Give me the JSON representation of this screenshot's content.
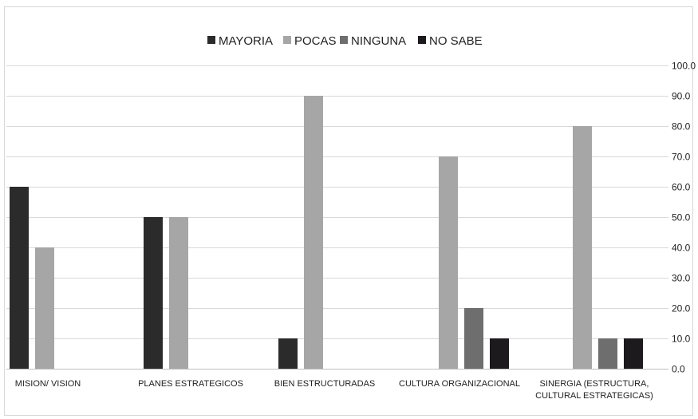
{
  "chart_data": {
    "type": "bar",
    "categories": [
      [
        "MISION/ VISION"
      ],
      [
        "PLANES ESTRATEGICOS"
      ],
      [
        "BIEN ESTRUCTURADAS"
      ],
      [
        "CULTURA ORGANIZACIONAL"
      ],
      [
        "SINERGIA (ESTRUCTURA,",
        "CULTURAL ESTRATEGICAS)"
      ]
    ],
    "series": [
      {
        "name": "MAYORIA",
        "color": "#2b2b2b",
        "values": [
          60,
          50,
          10,
          0,
          0
        ]
      },
      {
        "name": "POCAS",
        "color": "#a6a6a6",
        "values": [
          40,
          50,
          90,
          70,
          80
        ]
      },
      {
        "name": "NINGUNA",
        "color": "#6e6e6e",
        "values": [
          0,
          0,
          0,
          20,
          10
        ]
      },
      {
        "name": "NO SABE",
        "color": "#1c1a1d",
        "values": [
          0,
          0,
          0,
          10,
          10
        ]
      }
    ],
    "y_ticks": [
      "0.0",
      "10.0",
      "20.0",
      "30.0",
      "40.0",
      "50.0",
      "60.0",
      "70.0",
      "80.0",
      "90.0",
      "100.0"
    ],
    "ylim": [
      0,
      100
    ],
    "y_axis_side": "right",
    "grid": true,
    "legend_position": "top-center",
    "title": "",
    "xlabel": "",
    "ylabel": ""
  }
}
